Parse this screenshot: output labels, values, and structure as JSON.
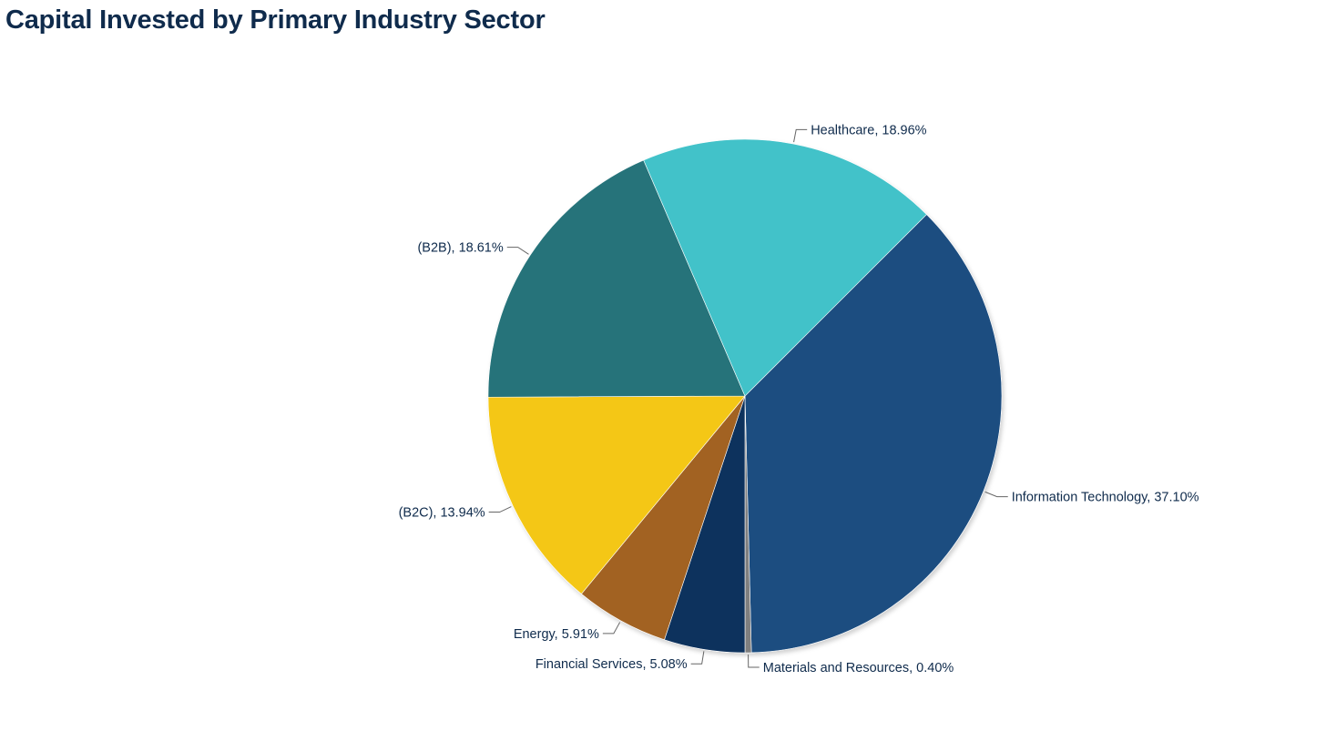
{
  "chart_data": {
    "type": "pie",
    "title": "Capital Invested by Primary Industry Sector",
    "start_angle_deg": -45,
    "direction": "clockwise",
    "slices": [
      {
        "name": "Information Technology",
        "value": 37.1,
        "label": "Information Technology, 37.10%",
        "color": "#1f4e80"
      },
      {
        "name": "Materials and Resources",
        "value": 0.4,
        "label": "Materials and Resources, 0.40%",
        "color": "#7f7f7f"
      },
      {
        "name": "Financial Services",
        "value": 5.08,
        "label": "Financial Services, 5.08%",
        "color": "#10325d"
      },
      {
        "name": "Energy",
        "value": 5.91,
        "label": "Energy, 5.91%",
        "color": "#a26223"
      },
      {
        "name": "(B2C)",
        "value": 13.94,
        "label": "(B2C), 13.94%",
        "color": "#f4c714"
      },
      {
        "name": "(B2B)",
        "value": 18.61,
        "label": "(B2B), 18.61%",
        "color": "#25737a"
      },
      {
        "name": "Healthcare",
        "value": 18.96,
        "label": "Healthcare, 18.96%",
        "color": "#43c2c9"
      }
    ]
  }
}
